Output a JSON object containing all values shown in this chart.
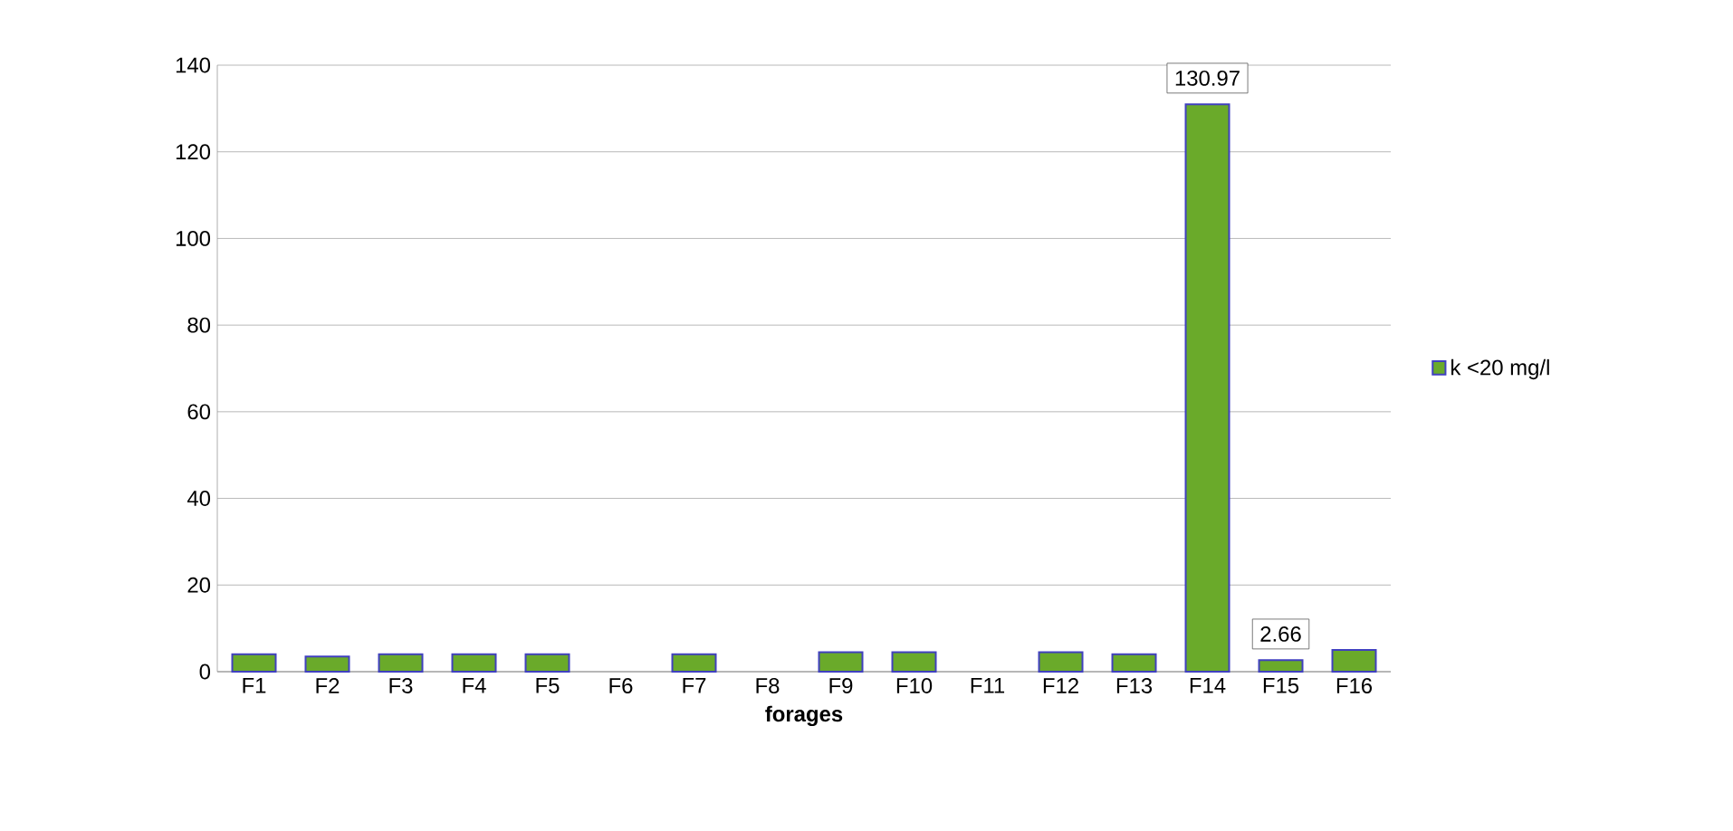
{
  "chart_data": {
    "type": "bar",
    "xlabel": "forages",
    "categories": [
      "F1",
      "F2",
      "F3",
      "F4",
      "F5",
      "F6",
      "F7",
      "F8",
      "F9",
      "F10",
      "F11",
      "F12",
      "F13",
      "F14",
      "F15",
      "F16"
    ],
    "series": [
      {
        "name": "k <20 mg/l",
        "color": "#6aaa2a",
        "values": [
          4,
          3.5,
          4,
          4,
          4,
          null,
          4,
          null,
          4.5,
          4.5,
          null,
          4.5,
          4,
          130.97,
          2.66,
          5
        ],
        "value_labels": [
          null,
          null,
          null,
          null,
          null,
          null,
          null,
          null,
          null,
          null,
          null,
          null,
          null,
          "130.97",
          "2.66",
          null
        ]
      }
    ],
    "ylim": [
      0,
      140
    ],
    "yticks": [
      0,
      20,
      40,
      60,
      80,
      100,
      120,
      140
    ],
    "grid": "y",
    "legend": "right"
  }
}
